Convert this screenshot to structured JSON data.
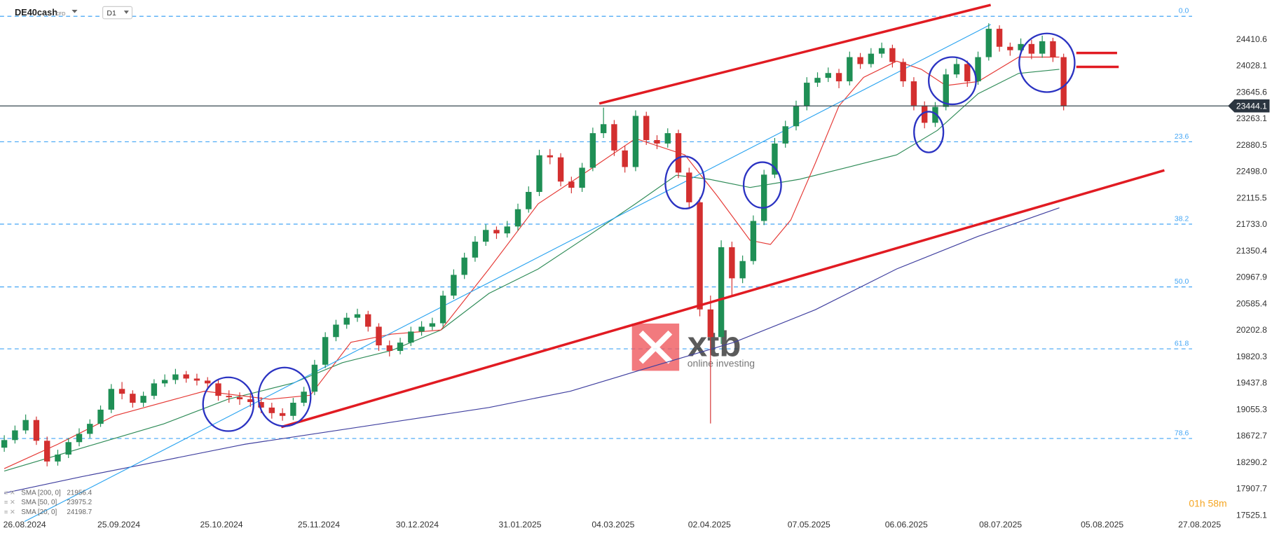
{
  "header": {
    "symbol": "DE40cash",
    "instrument_type": "CFD",
    "timeframe": "D1"
  },
  "watermark": {
    "brand": "xtb",
    "tagline": "online investing"
  },
  "timer": "01h 58m",
  "chart_data": {
    "type": "candlestick",
    "up_color": "#1f8f55",
    "down_color": "#d32f2f",
    "xlim": [
      -0.4,
      113.9
    ],
    "xticks": [
      {
        "value": 1.9,
        "label": "26.08.2024"
      },
      {
        "value": 10.7,
        "label": "25.09.2024"
      },
      {
        "value": 20.3,
        "label": "25.10.2024"
      },
      {
        "value": 29.4,
        "label": "25.11.2024"
      },
      {
        "value": 38.6,
        "label": "30.12.2024"
      },
      {
        "value": 48.2,
        "label": "31.01.2025"
      },
      {
        "value": 56.9,
        "label": "04.03.2025"
      },
      {
        "value": 65.9,
        "label": "02.04.2025"
      },
      {
        "value": 75.2,
        "label": "07.05.2025"
      },
      {
        "value": 84.3,
        "label": "06.06.2025"
      },
      {
        "value": 93.1,
        "label": "08.07.2025"
      },
      {
        "value": 102.6,
        "label": "05.08.2025"
      },
      {
        "value": 111.7,
        "label": "27.08.2025"
      }
    ],
    "ylim": [
      17266,
      24976
    ],
    "yticks": [
      17525.1,
      17907.7,
      18290.2,
      18672.7,
      19055.3,
      19437.8,
      19820.3,
      20202.8,
      20585.4,
      20967.9,
      21350.4,
      {
        "value": 21733,
        "label": "21733.0"
      },
      22115.5,
      {
        "value": 22498,
        "label": "22498.0"
      },
      22880.5,
      23263.1,
      23645.6,
      24028.1,
      24410.6
    ],
    "last_price": 23444.1,
    "ohlc": [
      [
        18500,
        18680,
        18440,
        18610
      ],
      [
        18610,
        18820,
        18560,
        18750
      ],
      [
        18750,
        18980,
        18700,
        18900
      ],
      [
        18900,
        18950,
        18540,
        18600
      ],
      [
        18600,
        18660,
        18230,
        18300
      ],
      [
        18300,
        18470,
        18240,
        18400
      ],
      [
        18400,
        18640,
        18350,
        18580
      ],
      [
        18580,
        18780,
        18520,
        18700
      ],
      [
        18700,
        18910,
        18640,
        18845
      ],
      [
        18845,
        19110,
        18800,
        19050
      ],
      [
        19050,
        19420,
        19000,
        19350
      ],
      [
        19350,
        19450,
        19200,
        19280
      ],
      [
        19280,
        19330,
        19080,
        19150
      ],
      [
        19150,
        19310,
        19090,
        19250
      ],
      [
        19250,
        19490,
        19200,
        19430
      ],
      [
        19430,
        19560,
        19380,
        19480
      ],
      [
        19480,
        19640,
        19420,
        19560
      ],
      [
        19560,
        19610,
        19440,
        19500
      ],
      [
        19500,
        19570,
        19400,
        19470
      ],
      [
        19470,
        19520,
        19360,
        19430
      ],
      [
        19430,
        19480,
        19180,
        19250
      ],
      [
        19250,
        19330,
        19150,
        19230
      ],
      [
        19230,
        19300,
        19120,
        19200
      ],
      [
        19200,
        19280,
        19090,
        19160
      ],
      [
        19160,
        19230,
        19000,
        19080
      ],
      [
        19080,
        19150,
        18920,
        19000
      ],
      [
        19000,
        19070,
        18890,
        18960
      ],
      [
        18960,
        19220,
        18900,
        19150
      ],
      [
        19150,
        19380,
        19100,
        19310
      ],
      [
        19310,
        19770,
        19260,
        19700
      ],
      [
        19700,
        20170,
        19650,
        20100
      ],
      [
        20100,
        20350,
        20040,
        20280
      ],
      [
        20280,
        20450,
        20220,
        20380
      ],
      [
        20380,
        20510,
        20320,
        20430
      ],
      [
        20430,
        20480,
        20180,
        20250
      ],
      [
        20250,
        20300,
        19900,
        19980
      ],
      [
        19980,
        20050,
        19820,
        19900
      ],
      [
        19900,
        20090,
        19850,
        20020
      ],
      [
        20020,
        20250,
        19970,
        20180
      ],
      [
        20180,
        20330,
        20120,
        20250
      ],
      [
        20250,
        20380,
        20200,
        20300
      ],
      [
        20300,
        20770,
        20250,
        20700
      ],
      [
        20700,
        21080,
        20650,
        21000
      ],
      [
        21000,
        21320,
        20940,
        21250
      ],
      [
        21250,
        21560,
        21190,
        21480
      ],
      [
        21480,
        21730,
        21420,
        21650
      ],
      [
        21650,
        21700,
        21520,
        21600
      ],
      [
        21600,
        21780,
        21540,
        21700
      ],
      [
        21700,
        22030,
        21640,
        21950
      ],
      [
        21950,
        22280,
        21900,
        22200
      ],
      [
        22200,
        22810,
        22140,
        22730
      ],
      [
        22730,
        22820,
        22600,
        22700
      ],
      [
        22700,
        22760,
        22280,
        22350
      ],
      [
        22350,
        22420,
        22180,
        22260
      ],
      [
        22260,
        22620,
        22200,
        22550
      ],
      [
        22550,
        23130,
        22500,
        23050
      ],
      [
        23050,
        23420,
        22980,
        23180
      ],
      [
        23180,
        23240,
        22720,
        22800
      ],
      [
        22800,
        22870,
        22480,
        22560
      ],
      [
        22560,
        23380,
        22500,
        23300
      ],
      [
        23300,
        23360,
        22880,
        22950
      ],
      [
        22950,
        23020,
        22820,
        22900
      ],
      [
        22900,
        23120,
        22840,
        23050
      ],
      [
        23050,
        23100,
        22400,
        22480
      ],
      [
        22480,
        22550,
        21950,
        22050
      ],
      [
        22050,
        22120,
        20400,
        20500
      ],
      [
        20500,
        20700,
        18850,
        20100
      ],
      [
        20100,
        21500,
        20000,
        21400
      ],
      [
        21400,
        21480,
        20700,
        20950
      ],
      [
        20950,
        21280,
        20880,
        21200
      ],
      [
        21200,
        21860,
        21150,
        21780
      ],
      [
        21780,
        22520,
        21720,
        22450
      ],
      [
        22450,
        22980,
        22400,
        22900
      ],
      [
        22900,
        23230,
        22840,
        23150
      ],
      [
        23150,
        23520,
        23090,
        23440
      ],
      [
        23440,
        23860,
        23380,
        23780
      ],
      [
        23780,
        23930,
        23720,
        23850
      ],
      [
        23850,
        24000,
        23790,
        23920
      ],
      [
        23920,
        23980,
        23700,
        23800
      ],
      [
        23800,
        24230,
        23740,
        24150
      ],
      [
        24150,
        24210,
        23980,
        24050
      ],
      [
        24050,
        24280,
        24000,
        24200
      ],
      [
        24200,
        24360,
        24140,
        24280
      ],
      [
        24280,
        24330,
        24000,
        24080
      ],
      [
        24080,
        24130,
        23720,
        23800
      ],
      [
        23800,
        23860,
        23380,
        23450
      ],
      [
        23450,
        23510,
        23120,
        23200
      ],
      [
        23200,
        23500,
        23140,
        23430
      ],
      [
        23430,
        23980,
        23380,
        23900
      ],
      [
        23900,
        24130,
        23850,
        24050
      ],
      [
        24050,
        24100,
        23720,
        23800
      ],
      [
        23800,
        24230,
        23750,
        24150
      ],
      [
        24150,
        24640,
        24100,
        24560
      ],
      [
        24560,
        24610,
        24230,
        24300
      ],
      [
        24300,
        24360,
        24170,
        24250
      ],
      [
        24250,
        24420,
        24190,
        24340
      ],
      [
        24340,
        24400,
        24120,
        24200
      ],
      [
        24200,
        24460,
        24140,
        24380
      ],
      [
        24380,
        24430,
        24080,
        24150
      ],
      [
        24150,
        24200,
        23380,
        23444.1
      ]
    ],
    "fib_levels": [
      {
        "value": 0,
        "label": "0.0"
      },
      23.6,
      38.2,
      {
        "value": 50,
        "label": "50.0"
      },
      61.8,
      78.6
    ],
    "fib_prices": [
      24741,
      22925,
      21734,
      20826,
      19930,
      18633
    ],
    "fib_color": "#42a5f5",
    "series": [
      {
        "name": "SMA [200, 0]",
        "last": 21956.4,
        "color": "#3f3f9f",
        "x": [
          0,
          7.2,
          14.9,
          22.5,
          30.1,
          37.7,
          45.3,
          52.9,
          60.5,
          68.2,
          75.8,
          83.4,
          91,
          98.6
        ],
        "values": [
          17843,
          18079,
          18315,
          18550,
          18727,
          18904,
          19082,
          19317,
          19671,
          20025,
          20496,
          21086,
          21557,
          21970
        ]
      },
      {
        "name": "SMA [50, 0]",
        "last": 23975.2,
        "color": "#2e8b57",
        "x": [
          0,
          7.2,
          14.9,
          20.9,
          27,
          31.6,
          36.2,
          40.8,
          45.3,
          49.9,
          54.5,
          59,
          62.8,
          65.9,
          69.7,
          74.3,
          78.9,
          83.4,
          87.2,
          91,
          94.8,
          98.6
        ],
        "values": [
          18162,
          18492,
          18845,
          19200,
          19435,
          19730,
          19907,
          20202,
          20732,
          21086,
          21557,
          22029,
          22441,
          22382,
          22264,
          22382,
          22559,
          22736,
          23090,
          23620,
          23915,
          23974
        ]
      },
      {
        "name": "SMA [20, 0]",
        "last": 24198.7,
        "color": "#e53935",
        "x": [
          0,
          5,
          10.3,
          18.7,
          24.8,
          28.6,
          32.4,
          36.2,
          40.8,
          45.3,
          49.9,
          54.5,
          59,
          63.6,
          66.6,
          69.7,
          71.6,
          73.5,
          75.8,
          78,
          80.3,
          83.4,
          85.7,
          88,
          91,
          94.8,
          98.6
        ],
        "values": [
          18197,
          18550,
          18963,
          19317,
          19200,
          19258,
          20025,
          20143,
          20202,
          21086,
          22029,
          22500,
          22972,
          22736,
          22147,
          21499,
          21440,
          21793,
          22618,
          23444,
          23857,
          24092,
          23974,
          23739,
          23797,
          24151,
          24151
        ]
      }
    ]
  }
}
